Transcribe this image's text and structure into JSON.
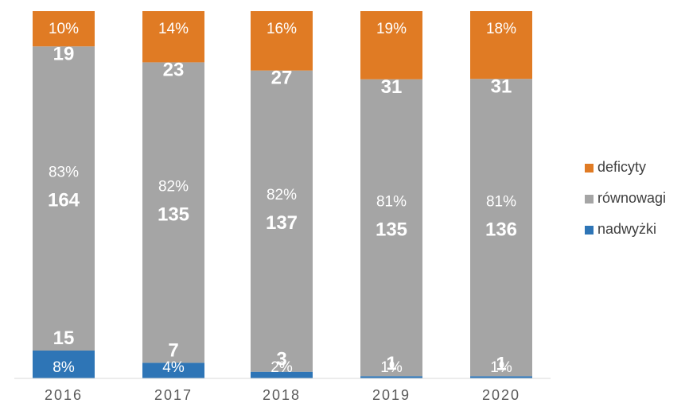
{
  "chart_data": {
    "type": "bar",
    "stacked": true,
    "normalized_percent": true,
    "categories": [
      "2016",
      "2017",
      "2018",
      "2019",
      "2020"
    ],
    "series": [
      {
        "name": "nadwyżki",
        "color": "#2e75b6",
        "values": [
          15,
          7,
          3,
          1,
          1
        ],
        "percent_labels": [
          "8%",
          "4%",
          "2%",
          "1%",
          "1%"
        ]
      },
      {
        "name": "równowagi",
        "color": "#a5a5a5",
        "values": [
          164,
          135,
          137,
          135,
          136
        ],
        "percent_labels": [
          "83%",
          "82%",
          "82%",
          "81%",
          "81%"
        ]
      },
      {
        "name": "deficyty",
        "color": "#e07b24",
        "values": [
          19,
          23,
          27,
          31,
          31
        ],
        "percent_labels": [
          "10%",
          "14%",
          "16%",
          "19%",
          "18%"
        ]
      }
    ],
    "legend": {
      "position": "right",
      "order": [
        "deficyty",
        "równowagi",
        "nadwyżki"
      ]
    },
    "grid": false,
    "y_axis_visible": false
  }
}
